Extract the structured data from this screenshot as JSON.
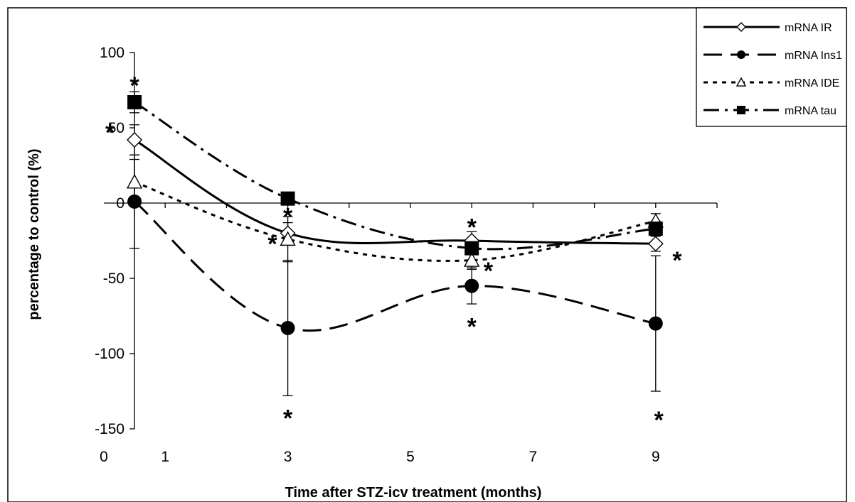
{
  "chart_data": {
    "type": "line",
    "title": "",
    "xlabel": "Time after STZ-icv treatment (months)",
    "ylabel": "percentage to control (%)",
    "xlim": [
      0,
      10
    ],
    "ylim": [
      -150,
      100
    ],
    "xticks": [
      0,
      1,
      3,
      5,
      7,
      9
    ],
    "yticks": [
      100,
      50,
      0,
      -50,
      -100,
      -150
    ],
    "grid": false,
    "legend_position": "top-right",
    "x": [
      0.5,
      3,
      6,
      9
    ],
    "series": [
      {
        "name": "mRNA IR",
        "marker": "diamond-open",
        "dash": "solid",
        "values": [
          42,
          -20,
          -25,
          -27
        ],
        "error": [
          10,
          7,
          6,
          5
        ]
      },
      {
        "name": "mRNA Ins1",
        "marker": "circle-filled",
        "dash": "long-dash",
        "values": [
          1,
          -83,
          -55,
          -80
        ],
        "error": [
          31,
          45,
          12,
          45
        ]
      },
      {
        "name": "mRNA IDE",
        "marker": "triangle-open",
        "dash": "short-dash",
        "values": [
          14,
          -24,
          -38,
          -12
        ],
        "error": [
          15,
          15,
          6,
          5
        ]
      },
      {
        "name": "mRNA tau",
        "marker": "square-filled",
        "dash": "dash-dot",
        "values": [
          67,
          3,
          -30,
          -17
        ],
        "error": [
          7,
          3,
          4,
          5
        ]
      }
    ],
    "annotations": {
      "symbol": "*",
      "items": [
        {
          "x": 0.5,
          "y": 82
        },
        {
          "x": 0.1,
          "y": 51
        },
        {
          "x": 3,
          "y": -5
        },
        {
          "x": 2.75,
          "y": -23
        },
        {
          "x": 3,
          "y": -139
        },
        {
          "x": 6,
          "y": -12
        },
        {
          "x": 6.27,
          "y": -41
        },
        {
          "x": 6,
          "y": -78
        },
        {
          "x": 9.35,
          "y": -34
        },
        {
          "x": 9.05,
          "y": -140
        }
      ]
    }
  }
}
